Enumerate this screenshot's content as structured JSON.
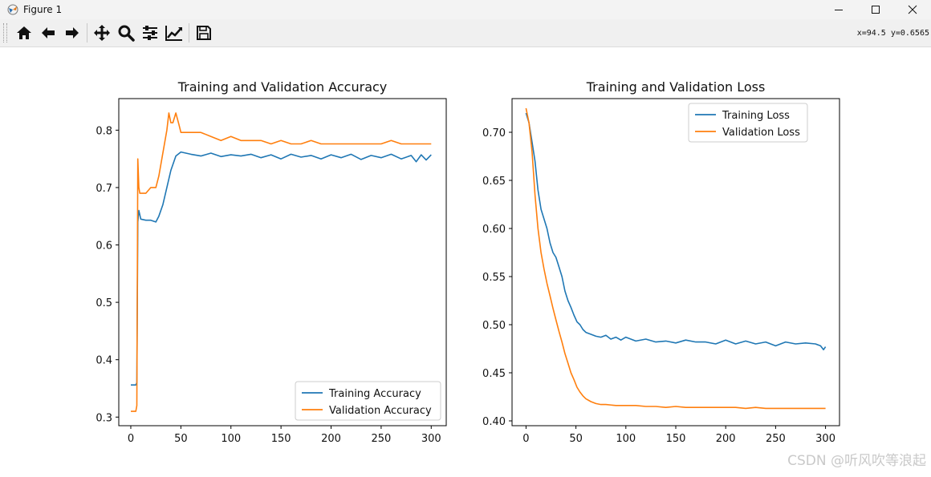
{
  "window": {
    "title": "Figure 1"
  },
  "toolbar": {
    "buttons": [
      {
        "name": "home-icon"
      },
      {
        "name": "back-arrow-icon"
      },
      {
        "name": "forward-arrow-icon"
      },
      {
        "name": "pan-icon"
      },
      {
        "name": "zoom-icon"
      },
      {
        "name": "configure-subplots-icon"
      },
      {
        "name": "edit-axis-icon"
      },
      {
        "name": "save-icon"
      }
    ],
    "coords": "x=94.5 y=0.6565"
  },
  "watermark": "CSDN @听风吹等浪起",
  "colors": {
    "series1": "#1f77b4",
    "series2": "#ff7f0e"
  },
  "chart_data": [
    {
      "type": "line",
      "title": "Training and Validation Accuracy",
      "xlabel": "",
      "ylabel": "",
      "xlim": [
        -12,
        315
      ],
      "ylim": [
        0.285,
        0.855
      ],
      "xticks": [
        0,
        50,
        100,
        150,
        200,
        250,
        300
      ],
      "yticks": [
        0.3,
        0.4,
        0.5,
        0.6,
        0.7,
        0.8
      ],
      "grid": false,
      "legend": "lower-right",
      "series": [
        {
          "name": "Training Accuracy",
          "x": [
            0,
            5,
            6,
            7,
            8,
            10,
            15,
            20,
            25,
            28,
            32,
            36,
            40,
            45,
            50,
            60,
            70,
            80,
            90,
            100,
            110,
            120,
            130,
            140,
            150,
            160,
            170,
            180,
            190,
            200,
            210,
            220,
            230,
            240,
            250,
            260,
            270,
            280,
            285,
            290,
            295,
            300
          ],
          "y": [
            0.356,
            0.356,
            0.36,
            0.64,
            0.66,
            0.645,
            0.643,
            0.643,
            0.64,
            0.65,
            0.67,
            0.7,
            0.73,
            0.755,
            0.762,
            0.758,
            0.755,
            0.76,
            0.754,
            0.757,
            0.755,
            0.758,
            0.752,
            0.757,
            0.75,
            0.758,
            0.753,
            0.756,
            0.75,
            0.757,
            0.752,
            0.758,
            0.749,
            0.756,
            0.752,
            0.758,
            0.75,
            0.756,
            0.745,
            0.757,
            0.748,
            0.757
          ]
        },
        {
          "name": "Validation Accuracy",
          "x": [
            0,
            5,
            6,
            7,
            8,
            9,
            10,
            15,
            20,
            25,
            28,
            32,
            36,
            38,
            40,
            42,
            45,
            48,
            50,
            55,
            60,
            70,
            80,
            90,
            100,
            110,
            120,
            130,
            140,
            150,
            160,
            170,
            180,
            190,
            200,
            210,
            220,
            230,
            240,
            250,
            260,
            270,
            280,
            290,
            300
          ],
          "y": [
            0.31,
            0.31,
            0.32,
            0.75,
            0.7,
            0.69,
            0.69,
            0.69,
            0.7,
            0.7,
            0.72,
            0.76,
            0.8,
            0.83,
            0.813,
            0.813,
            0.83,
            0.81,
            0.796,
            0.796,
            0.796,
            0.796,
            0.789,
            0.782,
            0.789,
            0.782,
            0.782,
            0.782,
            0.776,
            0.782,
            0.776,
            0.776,
            0.782,
            0.776,
            0.776,
            0.776,
            0.776,
            0.776,
            0.776,
            0.776,
            0.782,
            0.776,
            0.776,
            0.776,
            0.776
          ]
        }
      ]
    },
    {
      "type": "line",
      "title": "Training and Validation Loss",
      "xlabel": "",
      "ylabel": "",
      "xlim": [
        -14,
        314
      ],
      "ylim": [
        0.395,
        0.735
      ],
      "xticks": [
        0,
        50,
        100,
        150,
        200,
        250,
        300
      ],
      "yticks": [
        0.4,
        0.45,
        0.5,
        0.55,
        0.6,
        0.65,
        0.7
      ],
      "grid": false,
      "legend": "upper-right",
      "series": [
        {
          "name": "Training Loss",
          "x": [
            0,
            3,
            6,
            9,
            12,
            15,
            18,
            21,
            24,
            27,
            30,
            33,
            36,
            39,
            42,
            45,
            48,
            51,
            54,
            57,
            60,
            65,
            70,
            75,
            80,
            85,
            90,
            95,
            100,
            110,
            120,
            130,
            140,
            150,
            160,
            170,
            180,
            190,
            200,
            210,
            220,
            230,
            240,
            250,
            260,
            270,
            280,
            290,
            295,
            298,
            300
          ],
          "y": [
            0.72,
            0.71,
            0.69,
            0.67,
            0.64,
            0.62,
            0.61,
            0.6,
            0.585,
            0.575,
            0.57,
            0.56,
            0.55,
            0.535,
            0.525,
            0.518,
            0.51,
            0.503,
            0.5,
            0.495,
            0.492,
            0.49,
            0.488,
            0.487,
            0.489,
            0.485,
            0.487,
            0.484,
            0.487,
            0.483,
            0.485,
            0.482,
            0.483,
            0.481,
            0.484,
            0.482,
            0.482,
            0.48,
            0.484,
            0.48,
            0.483,
            0.48,
            0.482,
            0.478,
            0.482,
            0.48,
            0.481,
            0.48,
            0.478,
            0.474,
            0.477
          ]
        },
        {
          "name": "Validation Loss",
          "x": [
            0,
            3,
            6,
            9,
            12,
            15,
            18,
            21,
            24,
            27,
            30,
            33,
            36,
            39,
            42,
            45,
            48,
            51,
            54,
            57,
            60,
            65,
            70,
            75,
            80,
            90,
            100,
            110,
            120,
            130,
            140,
            150,
            160,
            170,
            180,
            190,
            200,
            210,
            220,
            230,
            240,
            250,
            260,
            270,
            280,
            290,
            300
          ],
          "y": [
            0.725,
            0.71,
            0.68,
            0.635,
            0.6,
            0.575,
            0.558,
            0.543,
            0.53,
            0.517,
            0.505,
            0.493,
            0.482,
            0.47,
            0.46,
            0.45,
            0.443,
            0.435,
            0.43,
            0.426,
            0.423,
            0.42,
            0.418,
            0.417,
            0.417,
            0.416,
            0.416,
            0.416,
            0.415,
            0.415,
            0.414,
            0.415,
            0.414,
            0.414,
            0.414,
            0.414,
            0.414,
            0.414,
            0.413,
            0.414,
            0.413,
            0.413,
            0.413,
            0.413,
            0.413,
            0.413,
            0.413
          ]
        }
      ]
    }
  ]
}
